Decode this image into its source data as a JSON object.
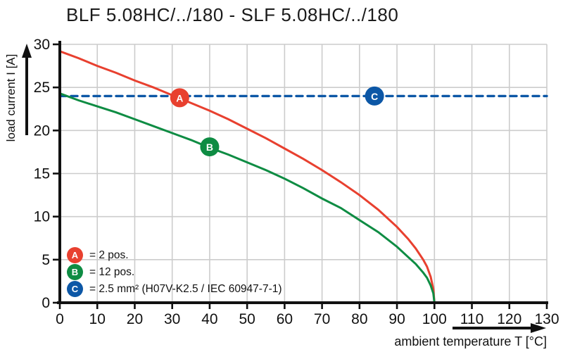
{
  "title": "BLF 5.08HC/../180 - SLF 5.08HC/../180",
  "colors": {
    "series_a_red": "#e8402f",
    "series_b_green": "#0e8c43",
    "series_c_blue": "#0c57a6",
    "grid": "#cccccc",
    "axis": "#111111",
    "text": "#111111",
    "background": "#ffffff"
  },
  "legend": {
    "items": [
      {
        "letter": "A",
        "label": "= 2 pos."
      },
      {
        "letter": "B",
        "label": "= 12 pos."
      },
      {
        "letter": "C",
        "label": "= 2.5 mm² (H07V-K2.5 / IEC 60947-7-1)"
      }
    ]
  },
  "chart_data": {
    "type": "line",
    "title": "BLF 5.08HC/../180 - SLF 5.08HC/../180",
    "xlabel": "ambient temperature T [°C]",
    "ylabel": "load current I [A]",
    "xlim": [
      0,
      130
    ],
    "ylim": [
      0,
      30
    ],
    "x_ticks": [
      0,
      10,
      20,
      30,
      40,
      50,
      60,
      70,
      80,
      90,
      100,
      110,
      120,
      130
    ],
    "y_ticks": [
      0,
      5,
      10,
      15,
      20,
      25,
      30
    ],
    "grid": true,
    "legend_position": "inside-bottom-left",
    "series": [
      {
        "name": "A",
        "label": "2 pos.",
        "color": "#e8402f",
        "style": "solid",
        "points": [
          [
            0,
            29.2
          ],
          [
            5,
            28.4
          ],
          [
            10,
            27.5
          ],
          [
            15,
            26.7
          ],
          [
            20,
            25.8
          ],
          [
            25,
            25.0
          ],
          [
            30,
            24.1
          ],
          [
            35,
            23.2
          ],
          [
            40,
            22.3
          ],
          [
            45,
            21.3
          ],
          [
            50,
            20.2
          ],
          [
            55,
            19.1
          ],
          [
            60,
            17.9
          ],
          [
            65,
            16.7
          ],
          [
            70,
            15.4
          ],
          [
            75,
            14.0
          ],
          [
            80,
            12.5
          ],
          [
            85,
            10.8
          ],
          [
            90,
            8.8
          ],
          [
            93,
            7.4
          ],
          [
            95,
            6.3
          ],
          [
            97,
            5.0
          ],
          [
            98,
            4.2
          ],
          [
            99,
            3.0
          ],
          [
            99.7,
            1.6
          ],
          [
            100,
            0
          ]
        ]
      },
      {
        "name": "B",
        "label": "12 pos.",
        "color": "#0e8c43",
        "style": "solid",
        "points": [
          [
            0,
            24.3
          ],
          [
            5,
            23.5
          ],
          [
            10,
            22.8
          ],
          [
            15,
            22.1
          ],
          [
            20,
            21.3
          ],
          [
            25,
            20.5
          ],
          [
            30,
            19.7
          ],
          [
            35,
            18.9
          ],
          [
            40,
            18.0
          ],
          [
            45,
            17.2
          ],
          [
            50,
            16.3
          ],
          [
            55,
            15.4
          ],
          [
            60,
            14.4
          ],
          [
            65,
            13.3
          ],
          [
            70,
            12.1
          ],
          [
            75,
            11.0
          ],
          [
            80,
            9.6
          ],
          [
            85,
            8.2
          ],
          [
            90,
            6.5
          ],
          [
            93,
            5.3
          ],
          [
            95,
            4.5
          ],
          [
            97,
            3.5
          ],
          [
            98,
            2.9
          ],
          [
            99,
            2.0
          ],
          [
            99.7,
            1.1
          ],
          [
            100,
            0
          ]
        ]
      },
      {
        "name": "C",
        "label": "2.5 mm² (H07V-K2.5 / IEC 60947-7-1)",
        "color": "#0c57a6",
        "style": "dashed",
        "points": [
          [
            0,
            24
          ],
          [
            130,
            24
          ]
        ]
      }
    ],
    "markers": [
      {
        "letter": "A",
        "series": "A",
        "x": 32,
        "y": 23.8
      },
      {
        "letter": "B",
        "series": "B",
        "x": 40,
        "y": 18.1
      },
      {
        "letter": "C",
        "series": "C",
        "x": 84,
        "y": 24
      }
    ]
  }
}
